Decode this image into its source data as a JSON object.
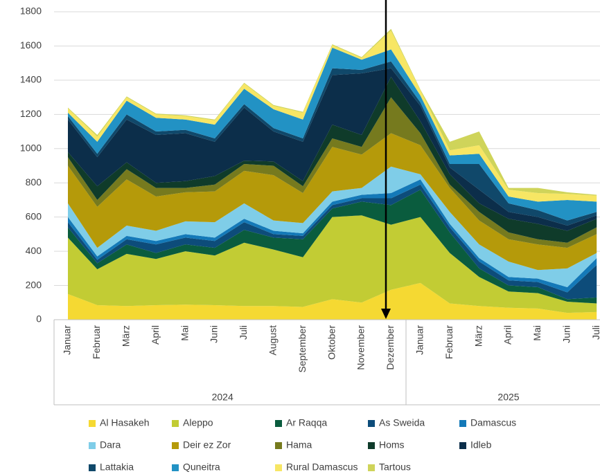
{
  "chart_data": {
    "type": "stacked_area",
    "category_groups": [
      {
        "name": "2024",
        "categories": [
          "Januar",
          "Februar",
          "März",
          "April",
          "Mai",
          "Juni",
          "Juli",
          "August",
          "September",
          "Oktober",
          "November",
          "Dezember"
        ]
      },
      {
        "name": "2025",
        "categories": [
          "Januar",
          "Februar",
          "März",
          "April",
          "Mai",
          "Juni",
          "Juli"
        ]
      }
    ],
    "series": [
      {
        "name": "Al Hasakeh",
        "color": "#f5d932",
        "values": [
          150,
          85,
          80,
          85,
          88,
          85,
          80,
          80,
          75,
          120,
          100,
          175,
          215,
          95,
          80,
          70,
          65,
          40,
          45
        ]
      },
      {
        "name": "Aleppo",
        "color": "#c2cc34",
        "values": [
          330,
          210,
          305,
          270,
          312,
          290,
          370,
          330,
          290,
          480,
          510,
          380,
          385,
          295,
          170,
          95,
          90,
          65,
          50
        ]
      },
      {
        "name": "Ar Raqqa",
        "color": "#0a5c3e",
        "values": [
          60,
          35,
          55,
          35,
          40,
          45,
          75,
          70,
          105,
          50,
          80,
          115,
          160,
          120,
          50,
          35,
          35,
          15,
          35
        ]
      },
      {
        "name": "As Sweida",
        "color": "#0d4c7a",
        "values": [
          30,
          20,
          30,
          50,
          40,
          40,
          45,
          20,
          20,
          20,
          20,
          40,
          30,
          30,
          40,
          30,
          30,
          40,
          190
        ]
      },
      {
        "name": "Damascus",
        "color": "#1479b8",
        "values": [
          30,
          20,
          20,
          20,
          20,
          20,
          20,
          20,
          15,
          20,
          20,
          30,
          30,
          20,
          20,
          20,
          20,
          30,
          40
        ]
      },
      {
        "name": "Dara",
        "color": "#7fcde8",
        "values": [
          80,
          50,
          60,
          60,
          75,
          90,
          90,
          60,
          60,
          60,
          40,
          155,
          30,
          70,
          80,
          90,
          50,
          110,
          30
        ]
      },
      {
        "name": "Deir ez Zor",
        "color": "#b59a0a",
        "values": [
          220,
          240,
          270,
          200,
          170,
          180,
          190,
          265,
          175,
          260,
          195,
          195,
          170,
          140,
          140,
          130,
          150,
          120,
          110
        ]
      },
      {
        "name": "Hama",
        "color": "#767a1e",
        "values": [
          50,
          40,
          60,
          50,
          25,
          40,
          40,
          55,
          40,
          50,
          45,
          210,
          70,
          20,
          50,
          40,
          30,
          30,
          40
        ]
      },
      {
        "name": "Homs",
        "color": "#0f3b2a",
        "values": [
          30,
          80,
          40,
          30,
          40,
          50,
          20,
          25,
          30,
          80,
          70,
          120,
          70,
          60,
          50,
          80,
          90,
          70,
          50
        ]
      },
      {
        "name": "Idleb",
        "color": "#0c2e4a",
        "values": [
          190,
          170,
          250,
          280,
          280,
          200,
          310,
          175,
          230,
          290,
          360,
          50,
          90,
          40,
          80,
          40,
          40,
          30,
          20
        ]
      },
      {
        "name": "Lattakia",
        "color": "#10486a",
        "values": [
          20,
          20,
          30,
          20,
          20,
          20,
          20,
          20,
          20,
          40,
          20,
          40,
          20,
          20,
          150,
          50,
          40,
          30,
          20
        ]
      },
      {
        "name": "Quneitra",
        "color": "#2292c4",
        "values": [
          20,
          70,
          80,
          80,
          60,
          80,
          90,
          110,
          110,
          120,
          60,
          70,
          40,
          50,
          60,
          40,
          50,
          120,
          60
        ]
      },
      {
        "name": "Rural Damascus",
        "color": "#f7e664",
        "values": [
          25,
          30,
          20,
          20,
          20,
          25,
          30,
          20,
          40,
          15,
          10,
          110,
          30,
          30,
          50,
          40,
          50,
          35,
          35
        ]
      },
      {
        "name": "Tartous",
        "color": "#cfd45a",
        "values": [
          5,
          10,
          5,
          5,
          5,
          5,
          5,
          5,
          5,
          5,
          5,
          10,
          5,
          50,
          80,
          10,
          30,
          10,
          5
        ]
      }
    ],
    "ylim": [
      0,
      1800
    ],
    "yticks": [
      0,
      200,
      400,
      600,
      800,
      1000,
      1200,
      1400,
      1600,
      1800
    ],
    "grid": true
  }
}
